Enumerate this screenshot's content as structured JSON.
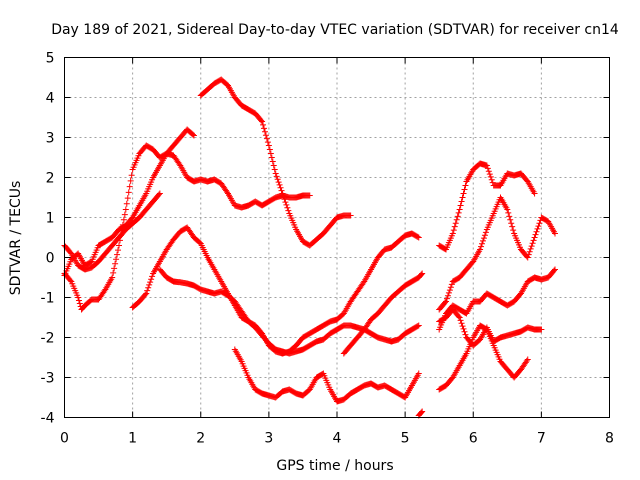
{
  "chart_data": {
    "type": "scatter",
    "title": "Day 189 of 2021, Sidereal Day-to-day VTEC variation (SDTVAR) for receiver cn14",
    "xlabel": "GPS time / hours",
    "ylabel": "SDTVAR / TECUs",
    "xlim": [
      0,
      8
    ],
    "ylim": [
      -4,
      5
    ],
    "xticks": [
      0,
      1,
      2,
      3,
      4,
      5,
      6,
      7,
      8
    ],
    "yticks": [
      -4,
      -3,
      -2,
      -1,
      0,
      1,
      2,
      3,
      4,
      5
    ],
    "grid": true,
    "marker": "plus",
    "color": "#ff0000",
    "series": [
      {
        "x": [
          0.0,
          0.1,
          0.2,
          0.25,
          0.3,
          0.4,
          0.5,
          0.6,
          0.7,
          0.8,
          0.9,
          1.0,
          1.1,
          1.2,
          1.3,
          1.4,
          1.5,
          1.6,
          1.7,
          1.8,
          1.9,
          2.0,
          2.1,
          2.2,
          2.3,
          2.4,
          2.5,
          2.6,
          2.7,
          2.8,
          2.9,
          3.0,
          3.1,
          3.2,
          3.3,
          3.4,
          3.5,
          3.6
        ],
        "y": [
          -0.4,
          -0.6,
          -1.0,
          -1.3,
          -1.2,
          -1.05,
          -1.05,
          -0.8,
          -0.5,
          0.3,
          1.2,
          2.2,
          2.6,
          2.8,
          2.7,
          2.5,
          2.6,
          2.55,
          2.3,
          2.0,
          1.9,
          1.95,
          1.9,
          1.95,
          1.85,
          1.6,
          1.3,
          1.25,
          1.3,
          1.4,
          1.3,
          1.4,
          1.5,
          1.55,
          1.5,
          1.5,
          1.55,
          1.55
        ]
      },
      {
        "x": [
          0.0,
          0.1,
          0.2,
          0.3,
          0.4,
          0.5,
          0.6,
          0.7,
          0.8,
          0.9,
          1.0,
          1.1,
          1.2,
          1.3,
          1.4,
          1.5,
          1.6,
          1.7,
          1.8,
          1.9
        ],
        "y": [
          -0.45,
          -0.05,
          0.1,
          -0.2,
          -0.1,
          0.3,
          0.4,
          0.5,
          0.7,
          0.8,
          1.0,
          1.3,
          1.6,
          2.0,
          2.3,
          2.6,
          2.8,
          3.0,
          3.2,
          3.05
        ]
      },
      {
        "x": [
          2.0,
          2.1,
          2.2,
          2.3,
          2.4,
          2.5,
          2.6,
          2.7,
          2.8,
          2.9,
          3.0,
          3.1,
          3.2,
          3.3,
          3.4,
          3.5,
          3.6,
          3.7,
          3.8,
          3.9,
          4.0,
          4.1,
          4.2
        ],
        "y": [
          4.05,
          4.2,
          4.35,
          4.45,
          4.3,
          4.0,
          3.8,
          3.7,
          3.6,
          3.4,
          2.8,
          2.1,
          1.6,
          1.1,
          0.7,
          0.4,
          0.3,
          0.45,
          0.6,
          0.8,
          1.0,
          1.05,
          1.05
        ]
      },
      {
        "x": [
          0.0,
          0.1,
          0.2,
          0.3,
          0.4,
          0.5,
          0.6,
          0.7,
          0.8,
          0.9,
          1.0,
          1.1,
          1.2,
          1.3,
          1.4
        ],
        "y": [
          0.3,
          0.1,
          -0.2,
          -0.3,
          -0.25,
          -0.1,
          0.1,
          0.3,
          0.5,
          0.7,
          0.85,
          1.0,
          1.2,
          1.4,
          1.6
        ]
      },
      {
        "x": [
          1.0,
          1.1,
          1.2,
          1.3,
          1.4,
          1.5,
          1.6,
          1.7,
          1.8,
          1.9,
          2.0,
          2.1,
          2.2,
          2.3,
          2.4,
          2.5,
          2.6,
          2.7,
          2.8,
          2.9,
          3.0,
          3.1,
          3.2,
          3.3,
          3.4,
          3.5,
          3.6,
          3.7,
          3.8,
          3.9,
          4.0,
          4.1,
          4.2,
          4.3,
          4.4,
          4.5,
          4.6,
          4.7,
          4.8,
          4.9,
          5.0,
          5.1,
          5.2
        ],
        "y": [
          -1.25,
          -1.1,
          -0.9,
          -0.4,
          -0.1,
          0.2,
          0.45,
          0.65,
          0.75,
          0.5,
          0.35,
          0.0,
          -0.3,
          -0.6,
          -0.9,
          -1.2,
          -1.5,
          -1.6,
          -1.7,
          -1.9,
          -2.2,
          -2.35,
          -2.4,
          -2.35,
          -2.2,
          -2.0,
          -1.9,
          -1.8,
          -1.7,
          -1.6,
          -1.55,
          -1.4,
          -1.1,
          -0.85,
          -0.6,
          -0.3,
          0.0,
          0.2,
          0.25,
          0.4,
          0.55,
          0.6,
          0.5
        ]
      },
      {
        "x": [
          1.4,
          1.5,
          1.6,
          1.7,
          1.8,
          1.9,
          2.0,
          2.1,
          2.2,
          2.3,
          2.4,
          2.5,
          2.6,
          2.7,
          2.8,
          2.9,
          3.0,
          3.1,
          3.2,
          3.3,
          3.4,
          3.5,
          3.6,
          3.7,
          3.8,
          3.9,
          4.0,
          4.1,
          4.2,
          4.3,
          4.4,
          4.5,
          4.6,
          4.7,
          4.8,
          4.9,
          5.0,
          5.1,
          5.2
        ],
        "y": [
          -0.3,
          -0.5,
          -0.6,
          -0.62,
          -0.65,
          -0.7,
          -0.8,
          -0.85,
          -0.9,
          -0.85,
          -0.95,
          -1.1,
          -1.35,
          -1.6,
          -1.75,
          -1.95,
          -2.15,
          -2.3,
          -2.35,
          -2.4,
          -2.35,
          -2.3,
          -2.2,
          -2.1,
          -2.05,
          -1.9,
          -1.8,
          -1.7,
          -1.7,
          -1.75,
          -1.8,
          -1.9,
          -2.0,
          -2.05,
          -2.1,
          -2.05,
          -1.9,
          -1.8,
          -1.7
        ]
      },
      {
        "x": [
          2.5,
          2.6,
          2.7,
          2.8,
          2.9,
          3.0,
          3.1,
          3.2,
          3.3,
          3.4,
          3.5,
          3.6,
          3.7,
          3.8,
          3.9,
          4.0,
          4.1,
          4.2,
          4.3,
          4.4,
          4.5,
          4.6,
          4.7,
          4.8,
          4.9,
          5.0,
          5.1,
          5.2
        ],
        "y": [
          -2.3,
          -2.6,
          -3.0,
          -3.3,
          -3.4,
          -3.45,
          -3.5,
          -3.35,
          -3.3,
          -3.4,
          -3.45,
          -3.3,
          -3.0,
          -2.9,
          -3.3,
          -3.6,
          -3.55,
          -3.4,
          -3.3,
          -3.2,
          -3.15,
          -3.25,
          -3.2,
          -3.3,
          -3.4,
          -3.5,
          -3.2,
          -2.9
        ]
      },
      {
        "x": [
          4.1,
          4.2,
          4.3,
          4.4,
          4.5,
          4.6,
          4.7,
          4.8,
          4.9,
          5.0,
          5.1,
          5.2,
          5.25
        ],
        "y": [
          -2.4,
          -2.2,
          -2.0,
          -1.8,
          -1.55,
          -1.4,
          -1.2,
          -1.0,
          -0.85,
          -0.7,
          -0.6,
          -0.5,
          -0.4
        ]
      },
      {
        "x": [
          5.2,
          5.25
        ],
        "y": [
          -3.95,
          -3.85
        ]
      },
      {
        "x": [
          5.5,
          5.6,
          5.7,
          5.8,
          5.9,
          6.0,
          6.1,
          6.2,
          6.3,
          6.4,
          6.5,
          6.6,
          6.7,
          6.8,
          6.9
        ],
        "y": [
          0.3,
          0.2,
          0.6,
          1.2,
          1.9,
          2.2,
          2.35,
          2.3,
          1.8,
          1.8,
          2.1,
          2.05,
          2.1,
          1.9,
          1.6
        ]
      },
      {
        "x": [
          5.5,
          5.6,
          5.7,
          5.8,
          5.9,
          6.0,
          6.1,
          6.2,
          6.3,
          6.4,
          6.5,
          6.6,
          6.7,
          6.8,
          6.9,
          7.0,
          7.1,
          7.2
        ],
        "y": [
          -1.3,
          -1.1,
          -0.6,
          -0.5,
          -0.3,
          -0.1,
          0.2,
          0.7,
          1.1,
          1.5,
          1.2,
          0.6,
          0.2,
          0.0,
          0.5,
          1.0,
          0.9,
          0.6
        ]
      },
      {
        "x": [
          5.5,
          5.6,
          5.7,
          5.8,
          5.9,
          6.0,
          6.1,
          6.2,
          6.3,
          6.4,
          6.5,
          6.6,
          6.7,
          6.8,
          6.9,
          7.0,
          7.1,
          7.2
        ],
        "y": [
          -1.8,
          -1.4,
          -1.2,
          -1.3,
          -1.4,
          -1.1,
          -1.1,
          -0.9,
          -1.0,
          -1.1,
          -1.2,
          -1.1,
          -0.9,
          -0.6,
          -0.5,
          -0.55,
          -0.5,
          -0.3
        ]
      },
      {
        "x": [
          5.5,
          5.6,
          5.7,
          5.8,
          5.9,
          6.0,
          6.1,
          6.2,
          6.3,
          6.4,
          6.5,
          6.6,
          6.7,
          6.8
        ],
        "y": [
          -3.3,
          -3.2,
          -3.0,
          -2.7,
          -2.4,
          -2.0,
          -1.7,
          -1.8,
          -2.2,
          -2.6,
          -2.8,
          -3.0,
          -2.8,
          -2.55
        ]
      },
      {
        "x": [
          5.5,
          5.6,
          5.7,
          5.8,
          5.9,
          6.0,
          6.1,
          6.2,
          6.3,
          6.4,
          6.5,
          6.6,
          6.7,
          6.8,
          6.9,
          7.0
        ],
        "y": [
          -1.6,
          -1.5,
          -1.3,
          -1.5,
          -2.0,
          -2.2,
          -2.05,
          -1.75,
          -2.1,
          -2.0,
          -1.95,
          -1.9,
          -1.85,
          -1.75,
          -1.8,
          -1.8
        ]
      }
    ]
  }
}
